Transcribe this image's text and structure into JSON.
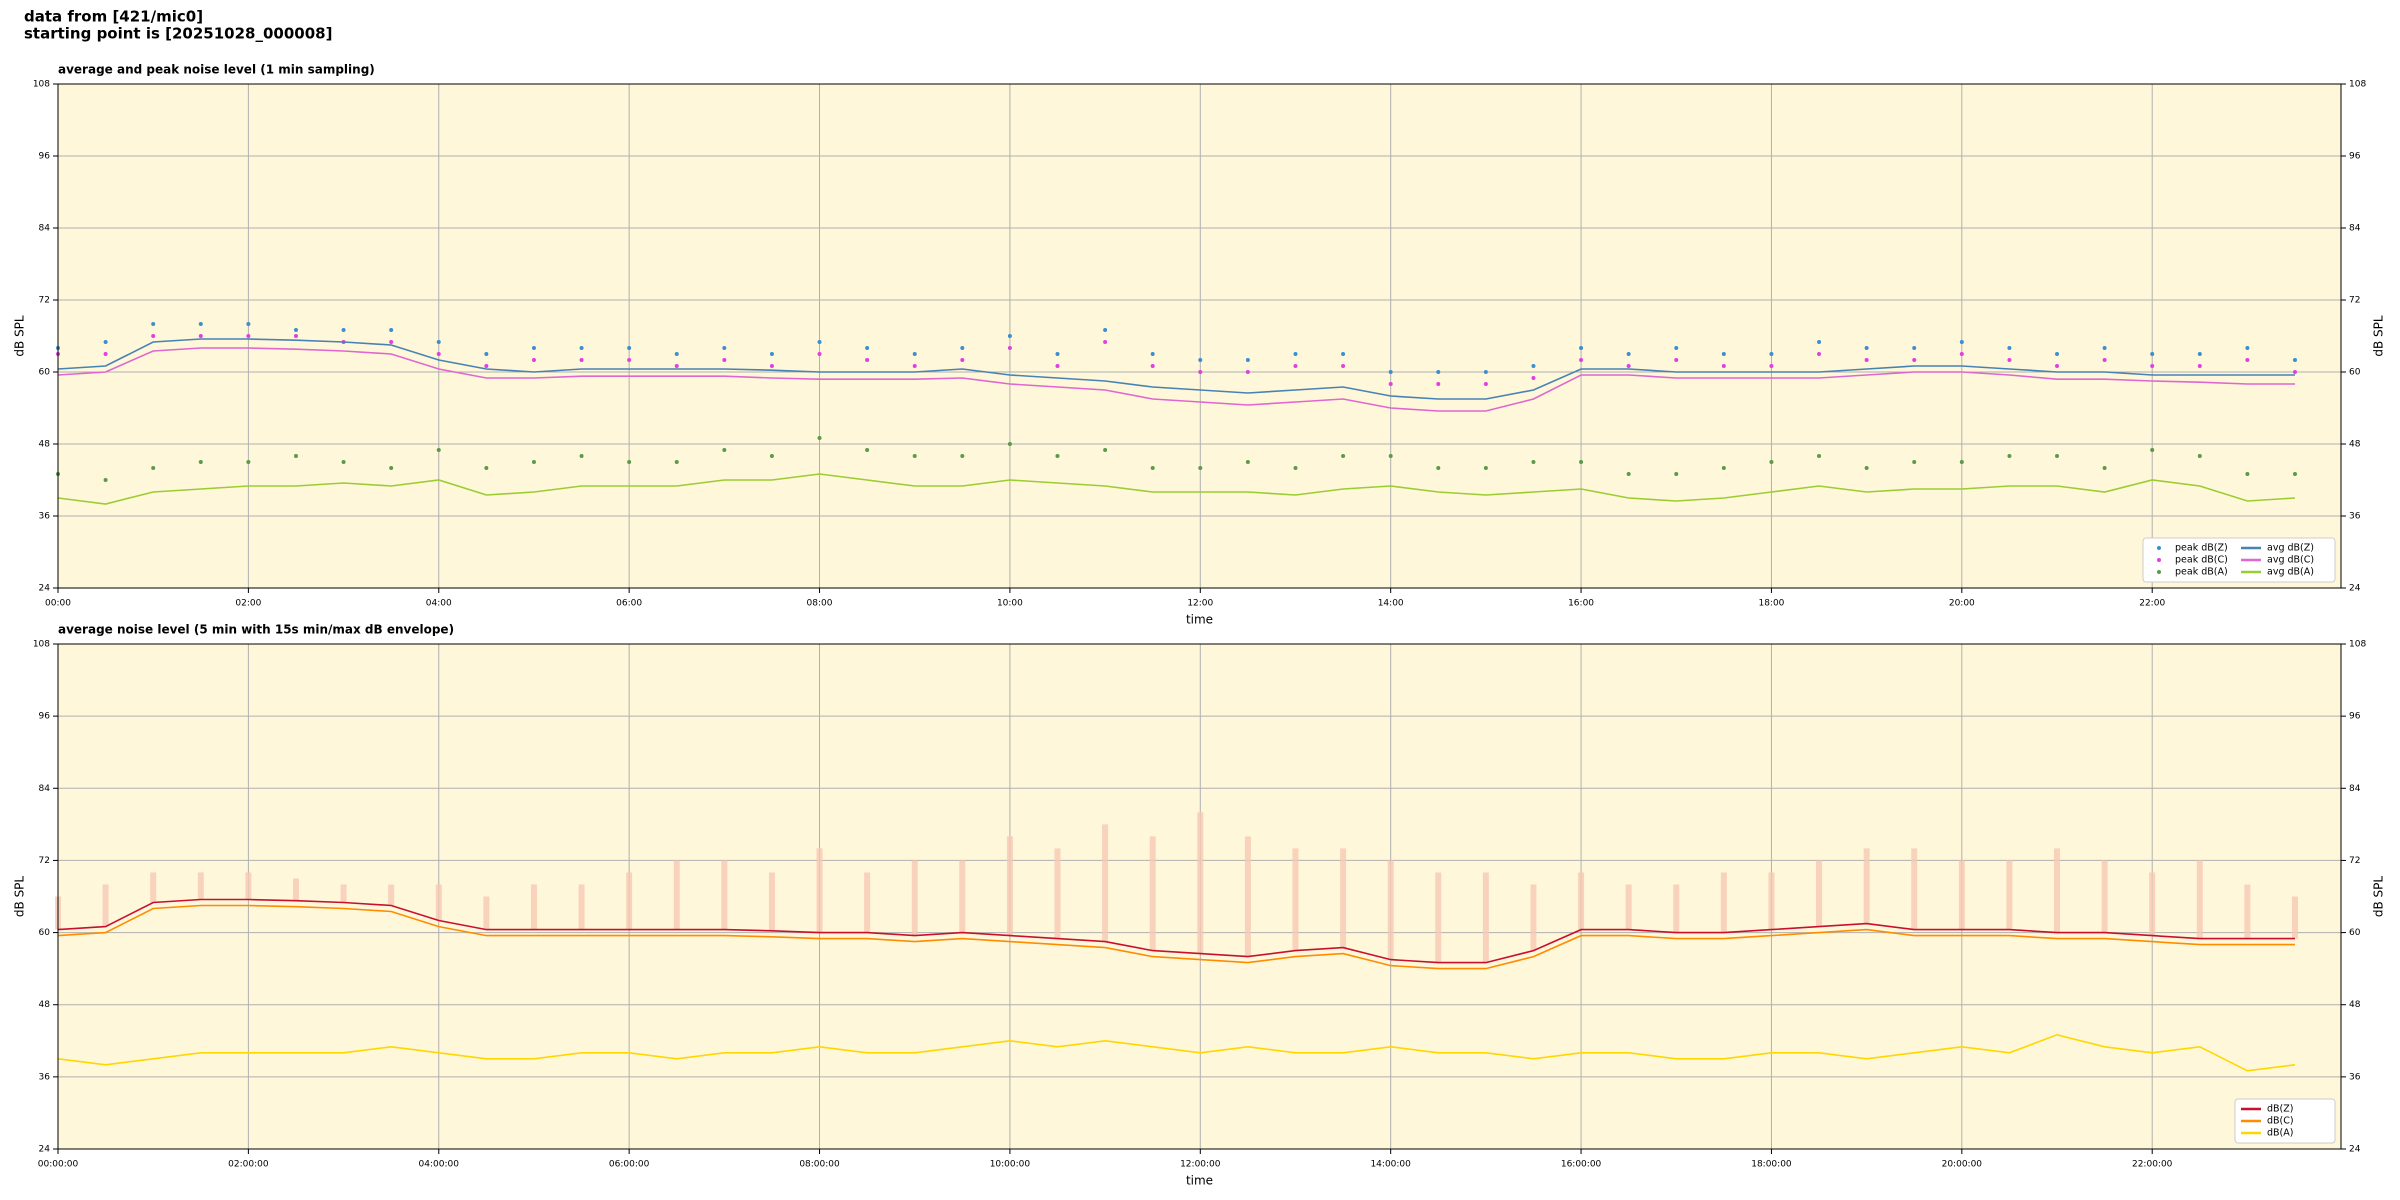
{
  "header": {
    "lines": [
      "data from [421/mic0]",
      "starting point is [20251028_000008]"
    ]
  },
  "chart_data": [
    {
      "type": "line",
      "title": "average and peak noise level (1 min sampling)",
      "xlabel": "time",
      "ylabel": "dB SPL",
      "x": [
        "00:00",
        "00:30",
        "01:00",
        "01:30",
        "02:00",
        "02:30",
        "03:00",
        "03:30",
        "04:00",
        "04:30",
        "05:00",
        "05:30",
        "06:00",
        "06:30",
        "07:00",
        "07:30",
        "08:00",
        "08:30",
        "09:00",
        "09:30",
        "10:00",
        "10:30",
        "11:00",
        "11:30",
        "12:00",
        "12:30",
        "13:00",
        "13:30",
        "14:00",
        "14:30",
        "15:00",
        "15:30",
        "16:00",
        "16:30",
        "17:00",
        "17:30",
        "18:00",
        "18:30",
        "19:00",
        "19:30",
        "20:00",
        "20:30",
        "21:00",
        "21:30",
        "22:00",
        "22:30",
        "23:00",
        "23:30"
      ],
      "xlim": [
        "00:00",
        "23:59"
      ],
      "xticks": [
        "00:00",
        "02:00",
        "04:00",
        "06:00",
        "08:00",
        "10:00",
        "12:00",
        "14:00",
        "16:00",
        "18:00",
        "20:00",
        "22:00"
      ],
      "ylim": [
        24,
        108
      ],
      "yticks": [
        24,
        36,
        48,
        60,
        72,
        84,
        96,
        108
      ],
      "grid": true,
      "legend": "lower right",
      "legend_columns": 2,
      "series": [
        {
          "name": "peak dB(Z)",
          "style": "points",
          "color": "#3a8fd0",
          "values": [
            64,
            65,
            68,
            68,
            68,
            67,
            67,
            67,
            65,
            63,
            64,
            64,
            64,
            63,
            64,
            63,
            65,
            64,
            63,
            64,
            66,
            63,
            67,
            63,
            62,
            62,
            63,
            63,
            60,
            60,
            60,
            61,
            64,
            63,
            64,
            63,
            63,
            65,
            64,
            64,
            65,
            64,
            63,
            64,
            63,
            63,
            64,
            62
          ]
        },
        {
          "name": "peak dB(C)",
          "style": "points",
          "color": "#e040e0",
          "values": [
            63,
            63,
            66,
            66,
            66,
            66,
            65,
            65,
            63,
            61,
            62,
            62,
            62,
            61,
            62,
            61,
            63,
            62,
            61,
            62,
            64,
            61,
            65,
            61,
            60,
            60,
            61,
            61,
            58,
            58,
            58,
            59,
            62,
            61,
            62,
            61,
            61,
            63,
            62,
            62,
            63,
            62,
            61,
            62,
            61,
            61,
            62,
            60
          ]
        },
        {
          "name": "peak dB(A)",
          "style": "points",
          "color": "#5a9a4a",
          "values": [
            43,
            42,
            44,
            45,
            45,
            46,
            45,
            44,
            47,
            44,
            45,
            46,
            45,
            45,
            47,
            46,
            49,
            47,
            46,
            46,
            48,
            46,
            47,
            44,
            44,
            45,
            44,
            46,
            46,
            44,
            44,
            45,
            45,
            43,
            43,
            44,
            45,
            46,
            44,
            45,
            45,
            46,
            46,
            44,
            47,
            46,
            43,
            43
          ]
        },
        {
          "name": "avg dB(Z)",
          "style": "line",
          "color": "#4682b4",
          "values": [
            60.5,
            61,
            65,
            65.5,
            65.5,
            65.3,
            65,
            64.5,
            62,
            60.5,
            60,
            60.5,
            60.5,
            60.5,
            60.5,
            60.3,
            60,
            60,
            60,
            60.5,
            59.5,
            59,
            58.5,
            57.5,
            57,
            56.5,
            57,
            57.5,
            56,
            55.5,
            55.5,
            57,
            60.5,
            60.5,
            60,
            60,
            60,
            60,
            60.5,
            61,
            61,
            60.5,
            60,
            60,
            59.5,
            59.5,
            59.5,
            59.5
          ]
        },
        {
          "name": "avg dB(C)",
          "style": "line",
          "color": "#e066d0",
          "values": [
            59.5,
            60,
            63.5,
            64,
            64,
            63.8,
            63.5,
            63,
            60.5,
            59,
            59,
            59.3,
            59.3,
            59.3,
            59.3,
            59,
            58.8,
            58.8,
            58.8,
            59,
            58,
            57.5,
            57,
            55.5,
            55,
            54.5,
            55,
            55.5,
            54,
            53.5,
            53.5,
            55.5,
            59.5,
            59.5,
            59,
            59,
            59,
            59,
            59.5,
            60,
            60,
            59.5,
            58.8,
            58.8,
            58.5,
            58.3,
            58,
            58
          ]
        },
        {
          "name": "avg dB(A)",
          "style": "line",
          "color": "#9acd32",
          "values": [
            39,
            38,
            40,
            40.5,
            41,
            41,
            41.5,
            41,
            42,
            39.5,
            40,
            41,
            41,
            41,
            42,
            42,
            43,
            42,
            41,
            41,
            42,
            41.5,
            41,
            40,
            40,
            40,
            39.5,
            40.5,
            41,
            40,
            39.5,
            40,
            40.5,
            39,
            38.5,
            39,
            40,
            41,
            40,
            40.5,
            40.5,
            41,
            41,
            40,
            42,
            41,
            38.5,
            39
          ]
        }
      ]
    },
    {
      "type": "line",
      "title": "average noise level (5 min with 15s min/max dB envelope)",
      "xlabel": "time",
      "ylabel": "dB SPL",
      "x": [
        "00:00:00",
        "00:30:00",
        "01:00:00",
        "01:30:00",
        "02:00:00",
        "02:30:00",
        "03:00:00",
        "03:30:00",
        "04:00:00",
        "04:30:00",
        "05:00:00",
        "05:30:00",
        "06:00:00",
        "06:30:00",
        "07:00:00",
        "07:30:00",
        "08:00:00",
        "08:30:00",
        "09:00:00",
        "09:30:00",
        "10:00:00",
        "10:30:00",
        "11:00:00",
        "11:30:00",
        "12:00:00",
        "12:30:00",
        "13:00:00",
        "13:30:00",
        "14:00:00",
        "14:30:00",
        "15:00:00",
        "15:30:00",
        "16:00:00",
        "16:30:00",
        "17:00:00",
        "17:30:00",
        "18:00:00",
        "18:30:00",
        "19:00:00",
        "19:30:00",
        "20:00:00",
        "20:30:00",
        "21:00:00",
        "21:30:00",
        "22:00:00",
        "22:30:00",
        "23:00:00",
        "23:30:00"
      ],
      "xlim": [
        "00:00:00",
        "23:59:00"
      ],
      "xticks": [
        "00:00:00",
        "02:00:00",
        "04:00:00",
        "06:00:00",
        "08:00:00",
        "10:00:00",
        "12:00:00",
        "14:00:00",
        "16:00:00",
        "18:00:00",
        "20:00:00",
        "22:00:00"
      ],
      "ylim": [
        24,
        108
      ],
      "yticks": [
        24,
        36,
        48,
        60,
        72,
        84,
        96,
        108
      ],
      "grid": true,
      "legend": "lower right",
      "legend_columns": 1,
      "envelope": {
        "color": "#f7c9b4",
        "values": [
          66,
          68,
          70,
          70,
          70,
          69,
          68,
          68,
          68,
          66,
          68,
          68,
          70,
          72,
          72,
          70,
          74,
          70,
          72,
          72,
          76,
          74,
          78,
          76,
          80,
          76,
          74,
          74,
          72,
          70,
          70,
          68,
          70,
          68,
          68,
          70,
          70,
          72,
          74,
          74,
          72,
          72,
          74,
          72,
          70,
          72,
          68,
          66
        ]
      },
      "series": [
        {
          "name": "dB(Z)",
          "style": "line",
          "color": "#c8102e",
          "values": [
            60.5,
            61,
            65,
            65.5,
            65.5,
            65.3,
            65,
            64.5,
            62,
            60.5,
            60.5,
            60.5,
            60.5,
            60.5,
            60.5,
            60.3,
            60,
            60,
            59.5,
            60,
            59.5,
            59,
            58.5,
            57,
            56.5,
            56,
            57,
            57.5,
            55.5,
            55,
            55,
            57,
            60.5,
            60.5,
            60,
            60,
            60.5,
            61,
            61.5,
            60.5,
            60.5,
            60.5,
            60,
            60,
            59.5,
            59,
            59,
            59
          ]
        },
        {
          "name": "dB(C)",
          "style": "line",
          "color": "#ff8c00",
          "values": [
            59.5,
            60,
            64,
            64.5,
            64.5,
            64.3,
            64,
            63.5,
            61,
            59.5,
            59.5,
            59.5,
            59.5,
            59.5,
            59.5,
            59.3,
            59,
            59,
            58.5,
            59,
            58.5,
            58,
            57.5,
            56,
            55.5,
            55,
            56,
            56.5,
            54.5,
            54,
            54,
            56,
            59.5,
            59.5,
            59,
            59,
            59.5,
            60,
            60.5,
            59.5,
            59.5,
            59.5,
            59,
            59,
            58.5,
            58,
            58,
            58
          ]
        },
        {
          "name": "dB(A)",
          "style": "line",
          "color": "#ffd700",
          "values": [
            39,
            38,
            39,
            40,
            40,
            40,
            40,
            41,
            40,
            39,
            39,
            40,
            40,
            39,
            40,
            40,
            41,
            40,
            40,
            41,
            42,
            41,
            42,
            41,
            40,
            41,
            40,
            40,
            41,
            40,
            40,
            39,
            40,
            40,
            39,
            39,
            40,
            40,
            39,
            40,
            41,
            40,
            43,
            41,
            40,
            41,
            37,
            38
          ]
        }
      ]
    }
  ]
}
